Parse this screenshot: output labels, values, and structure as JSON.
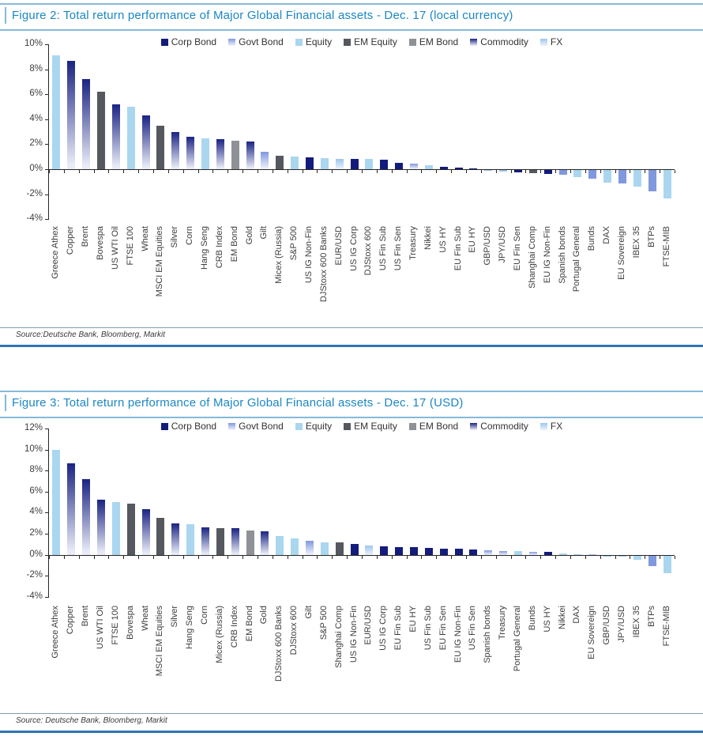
{
  "palette": {
    "corp_bond": {
      "label": "Corp Bond",
      "color": "#131c7a",
      "gradient": false,
      "fade": "#131c7a"
    },
    "govt_bond": {
      "label": "Govt Bond",
      "color": "#8098de",
      "gradient": true,
      "fade": "#eef1fb"
    },
    "equity": {
      "label": "Equity",
      "color": "#aad6ef",
      "gradient": false,
      "fade": "#aad6ef"
    },
    "em_equity": {
      "label": "EM Equity",
      "color": "#55585e",
      "gradient": false,
      "fade": "#55585e"
    },
    "em_bond": {
      "label": "EM Bond",
      "color": "#8e9196",
      "gradient": false,
      "fade": "#8e9196"
    },
    "commodity": {
      "label": "Commodity",
      "color": "#1a2382",
      "gradient": true,
      "fade": "#e9ecf7"
    },
    "fx": {
      "label": "FX",
      "color": "#9ec6ec",
      "gradient": true,
      "fade": "#eaf2fb"
    }
  },
  "accent_colors": {
    "title_blue": "#1b87c5",
    "rule_light_blue": "#85b9da",
    "rule_bottom_blue": "#2e74b6",
    "axis_color": "#262626"
  },
  "chart_data": [
    {
      "type": "bar",
      "title": "Figure 2: Total return performance of Major Global Financial assets - Dec. 17 (local currency)",
      "source": "Source:Deutsche Bank, Bloomberg, Markit",
      "ylim": [
        -4,
        10
      ],
      "yticks": [
        10,
        8,
        6,
        4,
        2,
        0,
        -2,
        -4
      ],
      "ytick_suffix": "%",
      "grid": false,
      "legend_position": "top",
      "legend": [
        "corp_bond",
        "govt_bond",
        "equity",
        "em_equity",
        "em_bond",
        "commodity",
        "fx"
      ],
      "bars": [
        {
          "label": "Greece Athex",
          "value": 9.1,
          "cat": "equity"
        },
        {
          "label": "Copper",
          "value": 8.7,
          "cat": "commodity"
        },
        {
          "label": "Brent",
          "value": 7.2,
          "cat": "commodity"
        },
        {
          "label": "Bovespa",
          "value": 6.2,
          "cat": "em_equity"
        },
        {
          "label": "US WTI Oil",
          "value": 5.2,
          "cat": "commodity"
        },
        {
          "label": "FTSE 100",
          "value": 5.0,
          "cat": "equity"
        },
        {
          "label": "Wheat",
          "value": 4.3,
          "cat": "commodity"
        },
        {
          "label": "MSCI EM Equities",
          "value": 3.5,
          "cat": "em_equity"
        },
        {
          "label": "Silver",
          "value": 3.0,
          "cat": "commodity"
        },
        {
          "label": "Corn",
          "value": 2.6,
          "cat": "commodity"
        },
        {
          "label": "Hang Seng",
          "value": 2.5,
          "cat": "equity"
        },
        {
          "label": "CRB Index",
          "value": 2.4,
          "cat": "commodity"
        },
        {
          "label": "EM Bond",
          "value": 2.3,
          "cat": "em_bond"
        },
        {
          "label": "Gold",
          "value": 2.2,
          "cat": "commodity"
        },
        {
          "label": "Gilt",
          "value": 1.4,
          "cat": "govt_bond"
        },
        {
          "label": "Micex (Russia)",
          "value": 1.1,
          "cat": "em_equity"
        },
        {
          "label": "S&P 500",
          "value": 1.0,
          "cat": "equity"
        },
        {
          "label": "US IG Non-Fin",
          "value": 0.95,
          "cat": "corp_bond"
        },
        {
          "label": "DJStoxx 600 Banks",
          "value": 0.9,
          "cat": "equity"
        },
        {
          "label": "EUR/USD",
          "value": 0.85,
          "cat": "fx"
        },
        {
          "label": "US IG Corp",
          "value": 0.8,
          "cat": "corp_bond"
        },
        {
          "label": "DJStoxx 600",
          "value": 0.8,
          "cat": "equity"
        },
        {
          "label": "US Fin Sub",
          "value": 0.75,
          "cat": "corp_bond"
        },
        {
          "label": "US Fin Sen",
          "value": 0.5,
          "cat": "corp_bond"
        },
        {
          "label": "Treasury",
          "value": 0.45,
          "cat": "govt_bond"
        },
        {
          "label": "Nikkei",
          "value": 0.3,
          "cat": "equity"
        },
        {
          "label": "US HY",
          "value": 0.2,
          "cat": "corp_bond"
        },
        {
          "label": "EU Fin Sub",
          "value": 0.1,
          "cat": "corp_bond"
        },
        {
          "label": "EU HY",
          "value": 0.05,
          "cat": "corp_bond"
        },
        {
          "label": "GBP/USD",
          "value": -0.05,
          "cat": "fx"
        },
        {
          "label": "JPY/USD",
          "value": -0.1,
          "cat": "fx"
        },
        {
          "label": "EU Fin Sen",
          "value": -0.2,
          "cat": "corp_bond"
        },
        {
          "label": "Shanghai Comp",
          "value": -0.25,
          "cat": "em_equity"
        },
        {
          "label": "EU IG Non-Fin",
          "value": -0.3,
          "cat": "corp_bond"
        },
        {
          "label": "Spanish bonds",
          "value": -0.4,
          "cat": "govt_bond"
        },
        {
          "label": "Portugal General",
          "value": -0.6,
          "cat": "equity"
        },
        {
          "label": "Bunds",
          "value": -0.7,
          "cat": "govt_bond"
        },
        {
          "label": "DAX",
          "value": -1.0,
          "cat": "equity"
        },
        {
          "label": "EU Sovereign",
          "value": -1.05,
          "cat": "govt_bond"
        },
        {
          "label": "IBEX 35",
          "value": -1.3,
          "cat": "equity"
        },
        {
          "label": "BTPs",
          "value": -1.7,
          "cat": "govt_bond"
        },
        {
          "label": "FTSE-MIB",
          "value": -2.3,
          "cat": "equity"
        }
      ]
    },
    {
      "type": "bar",
      "title": "Figure 3: Total return performance of Major Global Financial assets - Dec. 17 (USD)",
      "source": "Source: Deutsche Bank, Bloomberg, Markit",
      "ylim": [
        -4,
        12
      ],
      "yticks": [
        12,
        10,
        8,
        6,
        4,
        2,
        0,
        -2,
        -4
      ],
      "ytick_suffix": "%",
      "grid": false,
      "legend_position": "top",
      "legend": [
        "corp_bond",
        "govt_bond",
        "equity",
        "em_equity",
        "em_bond",
        "commodity",
        "fx"
      ],
      "bars": [
        {
          "label": "Greece Athex",
          "value": 10.0,
          "cat": "equity"
        },
        {
          "label": "Copper",
          "value": 8.7,
          "cat": "commodity"
        },
        {
          "label": "Brent",
          "value": 7.2,
          "cat": "commodity"
        },
        {
          "label": "US WTI Oil",
          "value": 5.2,
          "cat": "commodity"
        },
        {
          "label": "FTSE 100",
          "value": 5.0,
          "cat": "equity"
        },
        {
          "label": "Bovespa",
          "value": 4.85,
          "cat": "em_equity"
        },
        {
          "label": "Wheat",
          "value": 4.3,
          "cat": "commodity"
        },
        {
          "label": "MSCI EM Equities",
          "value": 3.5,
          "cat": "em_equity"
        },
        {
          "label": "Silver",
          "value": 3.0,
          "cat": "commodity"
        },
        {
          "label": "Hang Seng",
          "value": 2.9,
          "cat": "equity"
        },
        {
          "label": "Corn",
          "value": 2.6,
          "cat": "commodity"
        },
        {
          "label": "Micex (Russia)",
          "value": 2.55,
          "cat": "em_equity"
        },
        {
          "label": "CRB Index",
          "value": 2.5,
          "cat": "commodity"
        },
        {
          "label": "EM Bond",
          "value": 2.3,
          "cat": "em_bond"
        },
        {
          "label": "Gold",
          "value": 2.2,
          "cat": "commodity"
        },
        {
          "label": "DJStoxx 600 Banks",
          "value": 1.75,
          "cat": "equity"
        },
        {
          "label": "DJStoxx 600",
          "value": 1.55,
          "cat": "equity"
        },
        {
          "label": "Gilt",
          "value": 1.35,
          "cat": "govt_bond"
        },
        {
          "label": "S&P 500",
          "value": 1.15,
          "cat": "equity"
        },
        {
          "label": "Shanghai Comp",
          "value": 1.15,
          "cat": "em_equity"
        },
        {
          "label": "US IG Non-Fin",
          "value": 1.0,
          "cat": "corp_bond"
        },
        {
          "label": "EUR/USD",
          "value": 0.85,
          "cat": "fx"
        },
        {
          "label": "US IG Corp",
          "value": 0.8,
          "cat": "corp_bond"
        },
        {
          "label": "EU Fin Sub",
          "value": 0.75,
          "cat": "corp_bond"
        },
        {
          "label": "EU HY",
          "value": 0.7,
          "cat": "corp_bond"
        },
        {
          "label": "US Fin Sub",
          "value": 0.65,
          "cat": "corp_bond"
        },
        {
          "label": "EU Fin Sen",
          "value": 0.6,
          "cat": "corp_bond"
        },
        {
          "label": "EU IG Non-Fin",
          "value": 0.55,
          "cat": "corp_bond"
        },
        {
          "label": "US Fin Sen",
          "value": 0.5,
          "cat": "corp_bond"
        },
        {
          "label": "Spanish bonds",
          "value": 0.4,
          "cat": "govt_bond"
        },
        {
          "label": "Treasury",
          "value": 0.38,
          "cat": "govt_bond"
        },
        {
          "label": "Portugal General",
          "value": 0.35,
          "cat": "equity"
        },
        {
          "label": "Bunds",
          "value": 0.3,
          "cat": "govt_bond"
        },
        {
          "label": "US HY",
          "value": 0.25,
          "cat": "corp_bond"
        },
        {
          "label": "Nikkei",
          "value": 0.15,
          "cat": "equity"
        },
        {
          "label": "DAX",
          "value": 0.08,
          "cat": "equity"
        },
        {
          "label": "EU Sovereign",
          "value": 0.05,
          "cat": "govt_bond"
        },
        {
          "label": "GBP/USD",
          "value": -0.05,
          "cat": "fx"
        },
        {
          "label": "JPY/USD",
          "value": -0.1,
          "cat": "fx"
        },
        {
          "label": "IBEX 35",
          "value": -0.4,
          "cat": "equity"
        },
        {
          "label": "BTPs",
          "value": -1.0,
          "cat": "govt_bond"
        },
        {
          "label": "FTSE-MIB",
          "value": -1.7,
          "cat": "equity"
        }
      ]
    }
  ]
}
